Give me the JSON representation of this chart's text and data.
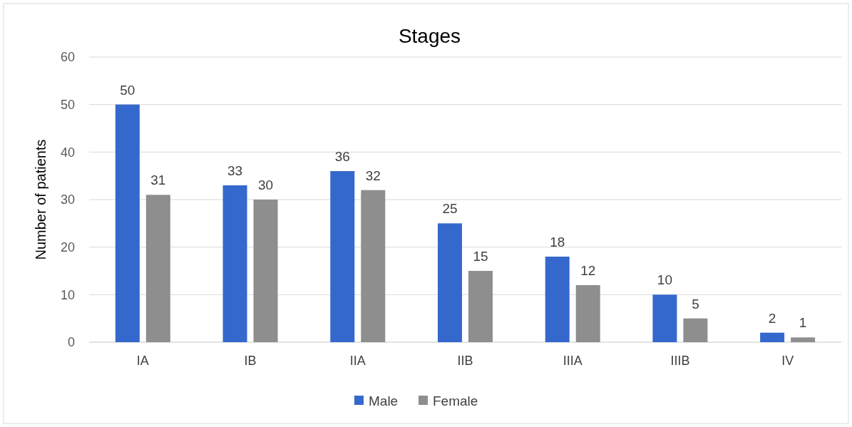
{
  "chart_data": {
    "type": "bar",
    "title": "Stages",
    "ylabel": "Number of patients",
    "categories": [
      "IA",
      "IB",
      "IIA",
      "IIB",
      "IIIA",
      "IIIB",
      "IV"
    ],
    "series": [
      {
        "name": "Male",
        "color": "#3568cc",
        "values": [
          50,
          33,
          36,
          25,
          18,
          10,
          2
        ]
      },
      {
        "name": "Female",
        "color": "#8e8e8e",
        "values": [
          31,
          30,
          32,
          15,
          12,
          5,
          1
        ]
      }
    ],
    "ylim": [
      0,
      60
    ],
    "yticks": [
      0,
      10,
      20,
      30,
      40,
      50,
      60
    ],
    "grid": "y",
    "legend": "bottom",
    "data_labels": true
  }
}
